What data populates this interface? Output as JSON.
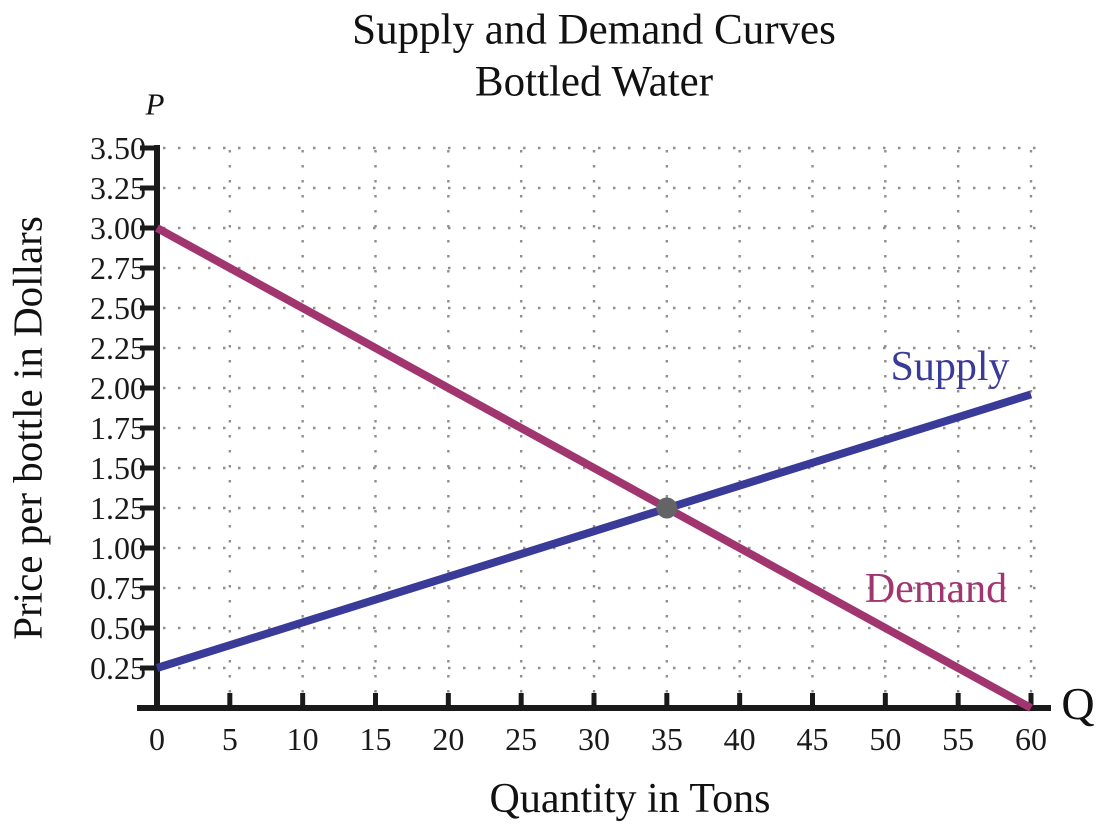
{
  "chart_data": {
    "type": "line",
    "title": "Supply and Demand Curves",
    "subtitle": "Bottled Water",
    "xlabel": "Quantity in Tons",
    "ylabel": "Price per bottle in Dollars",
    "x_axis_symbol": "Q",
    "y_axis_symbol": "P",
    "xlim": [
      0,
      60
    ],
    "ylim": [
      0,
      3.5
    ],
    "x_ticks": [
      0,
      5,
      10,
      15,
      20,
      25,
      30,
      35,
      40,
      45,
      50,
      55,
      60
    ],
    "x_tick_labels": [
      "0",
      "5",
      "10",
      "15",
      "20",
      "25",
      "30",
      "35",
      "40",
      "45",
      "50",
      "55",
      "60"
    ],
    "y_ticks": [
      0.25,
      0.5,
      0.75,
      1.0,
      1.25,
      1.5,
      1.75,
      2.0,
      2.25,
      2.5,
      2.75,
      3.0,
      3.25,
      3.5
    ],
    "y_tick_labels": [
      "0.25",
      "0.50",
      "0.75",
      "1.00",
      "1.25",
      "1.50",
      "1.75",
      "2.00",
      "2.25",
      "2.50",
      "2.75",
      "3.00",
      "3.25",
      "3.50"
    ],
    "grid": {
      "style": "dotted",
      "on": true,
      "color": "#8F8F8F"
    },
    "legend_position": "inline-curve-labels",
    "series": [
      {
        "name": "Supply",
        "color": "#3A3A99",
        "points": [
          [
            0,
            0.25
          ],
          [
            60,
            1.96
          ]
        ]
      },
      {
        "name": "Demand",
        "color": "#A0356F",
        "points": [
          [
            0,
            3.0
          ],
          [
            60,
            0.0
          ]
        ]
      }
    ],
    "equilibrium": {
      "quantity": 35,
      "price": 1.25,
      "dot_color": "#646466"
    },
    "axis_color": "#1A1A1A",
    "tick_label_color": "#1A1A1A",
    "text_color": "#111111"
  }
}
